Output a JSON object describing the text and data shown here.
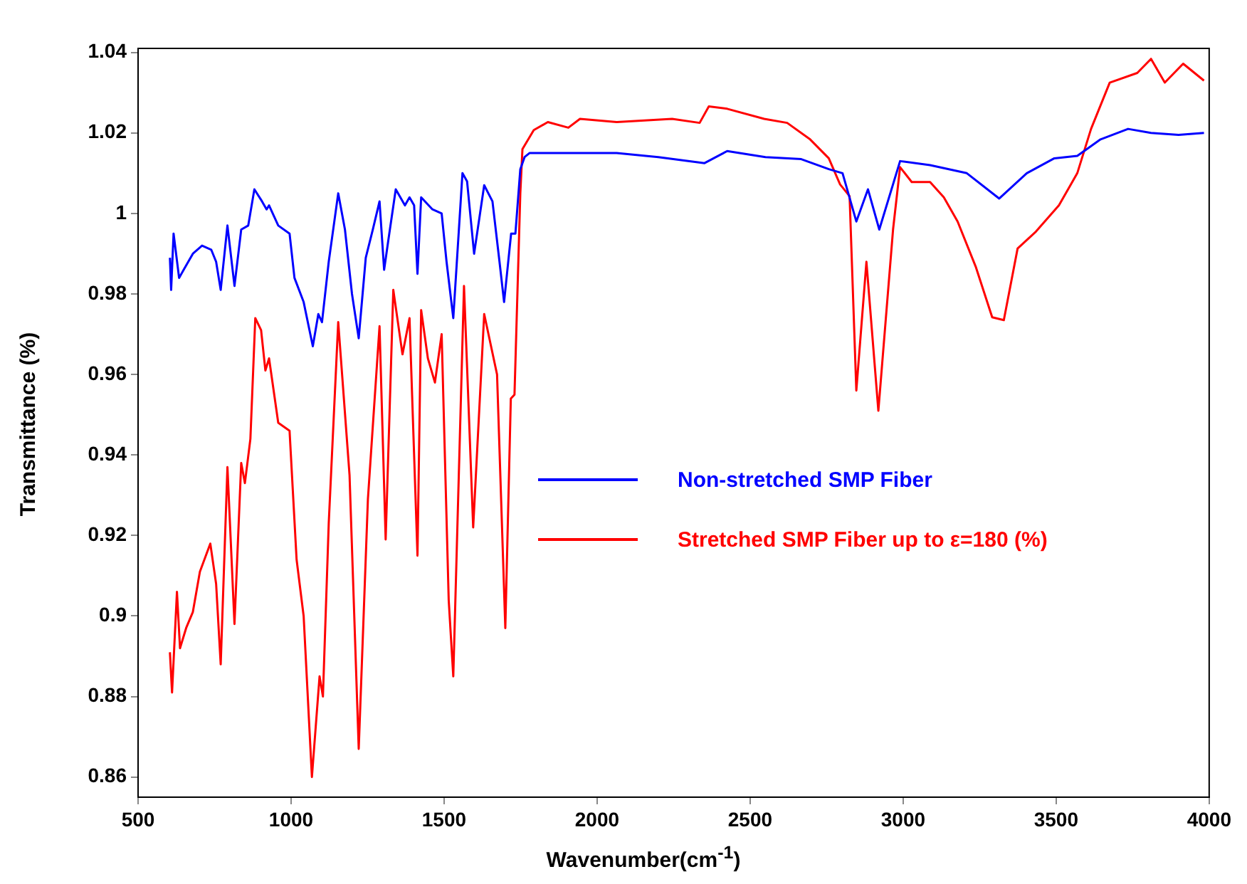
{
  "chart_data": {
    "type": "line",
    "xlabel": "Wavenumber(cm$^{-1}$)",
    "ylabel": "Transmittance (%)",
    "xlim": [
      500,
      4000
    ],
    "xticks": [
      500,
      1000,
      1500,
      2000,
      2500,
      3000,
      3500,
      4000
    ],
    "ylim": [
      0.855,
      1.041
    ],
    "yticks": [
      0.86,
      0.88,
      0.9,
      0.92,
      0.94,
      0.96,
      0.98,
      1,
      1.02,
      1.04
    ],
    "grid": false,
    "legend": "right",
    "marker": "none",
    "line_style": "solid",
    "series": [
      {
        "name": "Non-stretched SMP Fiber",
        "color": "#0000ff",
        "x": [
          604,
          608,
          616,
          634,
          649,
          679,
          709,
          739,
          755,
          770,
          792,
          815,
          837,
          860,
          880,
          905,
          920,
          928,
          958,
          995,
          1011,
          1041,
          1071,
          1089,
          1101,
          1123,
          1154,
          1176,
          1199,
          1221,
          1244,
          1267,
          1289,
          1304,
          1319,
          1342,
          1372,
          1387,
          1402,
          1413,
          1425,
          1462,
          1492,
          1508,
          1530,
          1560,
          1575,
          1598,
          1631,
          1658,
          1681,
          1696,
          1699,
          1719,
          1733,
          1749,
          1763,
          1779,
          1944,
          2064,
          2200,
          2351,
          2425,
          2550,
          2667,
          2757,
          2802,
          2847,
          2885,
          2922,
          2990,
          3088,
          3208,
          3314,
          3404,
          3494,
          3569,
          3645,
          3735,
          3810,
          3900,
          3983
        ],
        "values": [
          0.989,
          0.981,
          0.995,
          0.984,
          0.986,
          0.99,
          0.992,
          0.991,
          0.988,
          0.981,
          0.997,
          0.982,
          0.996,
          0.997,
          1.006,
          1.003,
          1.001,
          1.002,
          0.997,
          0.995,
          0.984,
          0.978,
          0.967,
          0.975,
          0.973,
          0.988,
          1.005,
          0.996,
          0.98,
          0.969,
          0.989,
          0.996,
          1.003,
          0.986,
          0.994,
          1.006,
          1.002,
          1.004,
          1.002,
          0.985,
          1.004,
          1.001,
          1,
          0.988,
          0.974,
          1.01,
          1.008,
          0.99,
          1.007,
          1.003,
          0.988,
          0.978,
          0.978,
          0.995,
          0.995,
          1.011,
          1.014,
          1.015,
          1.015,
          1.015,
          1.014,
          1.0125,
          1.0155,
          1.014,
          1.0135,
          1.011,
          1.01,
          0.998,
          1.006,
          0.996,
          1.013,
          1.012,
          1.01,
          1.0037,
          1.01,
          1.0137,
          1.0143,
          1.0184,
          1.021,
          1.02,
          1.0195,
          1.02
        ]
      },
      {
        "name": "Stretched SMP Fiber up to ε=180 (%)",
        "color": "#ff0000",
        "x": [
          604,
          611,
          627,
          637,
          657,
          679,
          702,
          736,
          755,
          770,
          792,
          815,
          837,
          849,
          867,
          883,
          902,
          916,
          928,
          958,
          995,
          1018,
          1041,
          1068,
          1093,
          1104,
          1123,
          1154,
          1191,
          1221,
          1251,
          1289,
          1309,
          1334,
          1364,
          1387,
          1413,
          1425,
          1447,
          1470,
          1492,
          1515,
          1530,
          1565,
          1595,
          1631,
          1673,
          1700,
          1718,
          1730,
          1749,
          1756,
          1793,
          1839,
          1906,
          1944,
          2064,
          2245,
          2335,
          2365,
          2425,
          2546,
          2621,
          2696,
          2757,
          2794,
          2825,
          2847,
          2880,
          2919,
          2967,
          2990,
          3028,
          3088,
          3133,
          3178,
          3238,
          3291,
          3329,
          3374,
          3434,
          3509,
          3569,
          3614,
          3675,
          3765,
          3810,
          3855,
          3915,
          3983
        ],
        "values": [
          0.891,
          0.881,
          0.906,
          0.892,
          0.897,
          0.901,
          0.911,
          0.918,
          0.908,
          0.888,
          0.937,
          0.898,
          0.938,
          0.933,
          0.944,
          0.974,
          0.971,
          0.961,
          0.964,
          0.948,
          0.946,
          0.914,
          0.9,
          0.86,
          0.885,
          0.88,
          0.923,
          0.973,
          0.935,
          0.867,
          0.929,
          0.972,
          0.919,
          0.981,
          0.965,
          0.974,
          0.915,
          0.976,
          0.964,
          0.958,
          0.97,
          0.904,
          0.885,
          0.982,
          0.922,
          0.975,
          0.96,
          0.897,
          0.954,
          0.955,
          1.005,
          1.016,
          1.0207,
          1.0227,
          1.0213,
          1.0235,
          1.0227,
          1.0235,
          1.0225,
          1.0266,
          1.026,
          1.0235,
          1.0225,
          1.0184,
          1.0137,
          1.0072,
          1.0043,
          0.956,
          0.988,
          0.951,
          0.996,
          1.0115,
          1.0078,
          1.0078,
          1.004,
          0.998,
          0.9866,
          0.9742,
          0.9735,
          0.9913,
          0.9955,
          1.002,
          1.01,
          1.021,
          1.0325,
          1.0349,
          1.0384,
          1.0325,
          1.0372,
          1.033
        ]
      }
    ]
  }
}
